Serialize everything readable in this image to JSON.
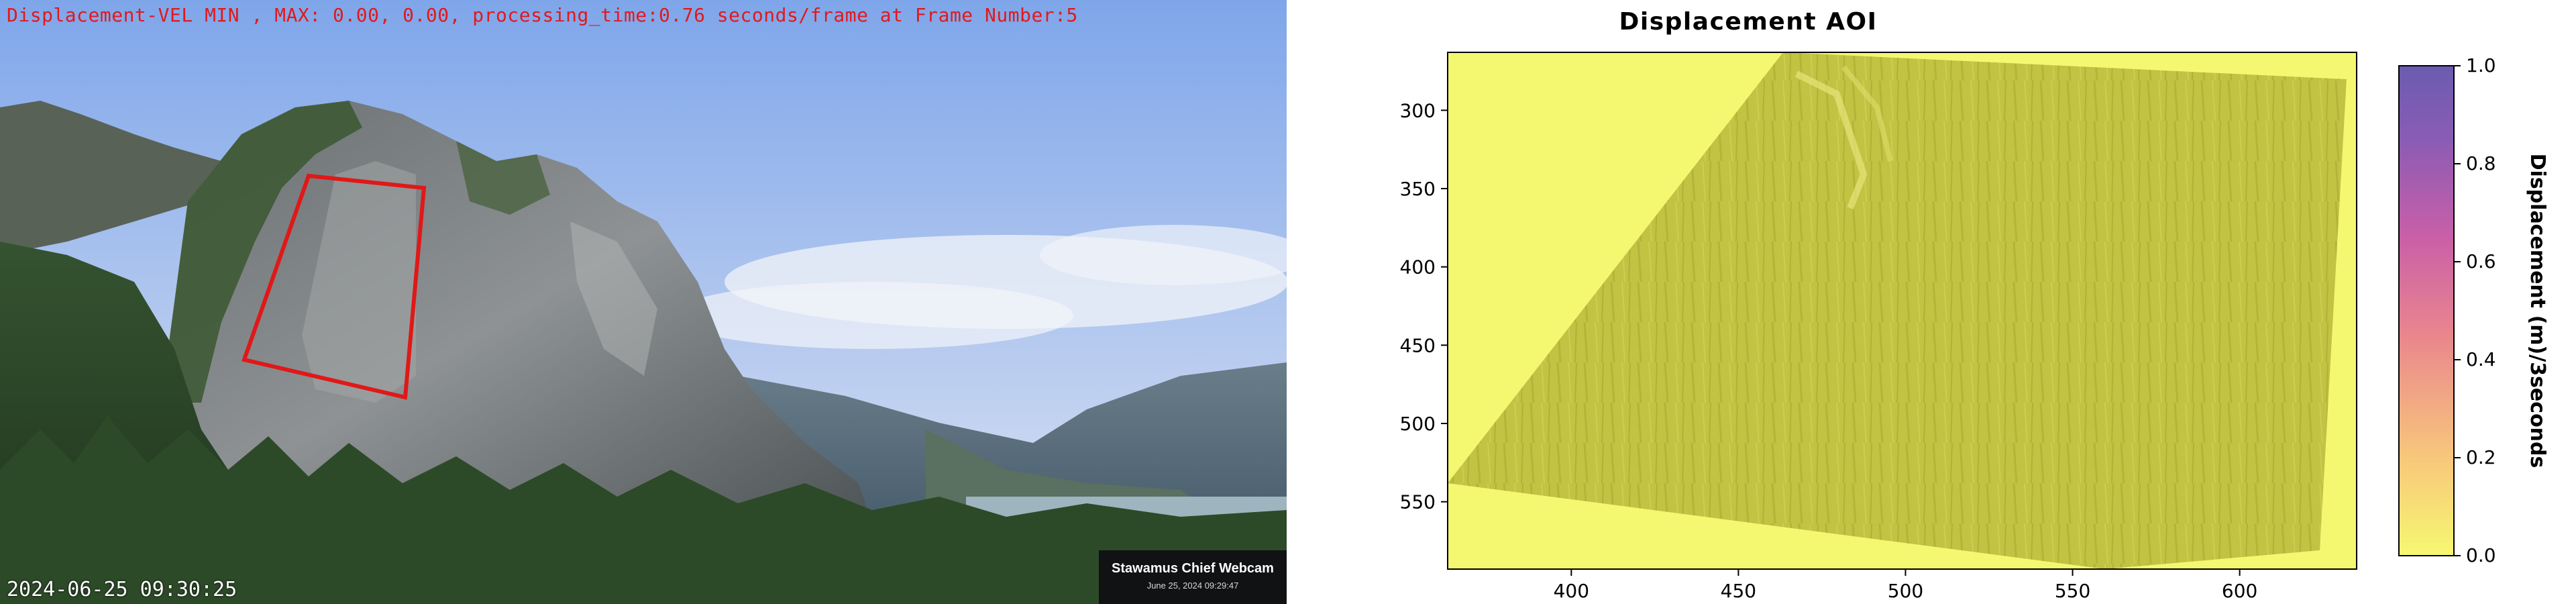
{
  "webcam": {
    "overlay_title": "Displacement-VEL MIN , MAX: 0.00, 0.00, processing_time:0.76 seconds/frame at Frame Number:5",
    "timestamp": "2024-06-25 09:30:25",
    "caption_title": "Stawamus Chief Webcam",
    "caption_subtitle": "June 25, 2024 09:29:47",
    "aoi_color": "#e01818"
  },
  "chart_data": {
    "type": "heatmap",
    "title": "Displacement AOI",
    "xlabel": "",
    "ylabel": "",
    "xlim": [
      363,
      635
    ],
    "ylim": [
      593,
      263
    ],
    "x_ticks": [
      400,
      450,
      500,
      550,
      600
    ],
    "y_ticks": [
      300,
      350,
      400,
      450,
      500,
      550
    ],
    "colorbar": {
      "label": "Displacement (m)/3seconds",
      "range": [
        0.0,
        1.0
      ],
      "ticks": [
        0.0,
        0.2,
        0.4,
        0.6,
        0.8,
        1.0
      ],
      "colors": [
        "#f6f871",
        "#f8c77b",
        "#e9868d",
        "#ca5fa8",
        "#8a5cb4",
        "#6a5cb0"
      ]
    },
    "displacement_min": 0.0,
    "displacement_max": 0.0,
    "grid": false
  }
}
